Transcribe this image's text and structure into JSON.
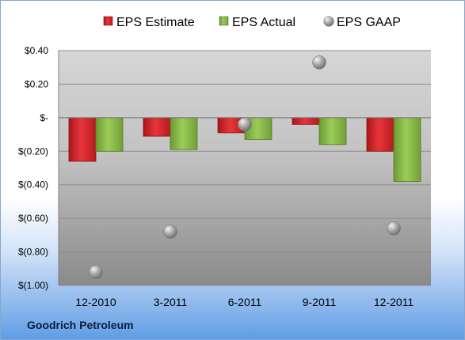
{
  "chart_data": {
    "type": "bar",
    "categories": [
      "12-2010",
      "3-2011",
      "6-2011",
      "9-2011",
      "12-2011"
    ],
    "series": [
      {
        "name": "EPS Estimate",
        "values": [
          -0.26,
          -0.11,
          -0.09,
          -0.04,
          -0.2
        ],
        "color": "#e0252a"
      },
      {
        "name": "EPS Actual",
        "values": [
          -0.2,
          -0.19,
          -0.13,
          -0.16,
          -0.38
        ],
        "color": "#8fc04a"
      },
      {
        "name": "EPS GAAP",
        "values": [
          -0.92,
          -0.68,
          -0.04,
          0.33,
          -0.66
        ],
        "color": "#a6a6a6",
        "style": "marker"
      }
    ],
    "ylim": [
      -1.0,
      0.4
    ],
    "yticks": [
      0.4,
      0.2,
      0.0,
      -0.2,
      -0.4,
      -0.6,
      -0.8,
      -1.0
    ],
    "ytick_labels": [
      "$0.40",
      "$0.20",
      "$-",
      "$(0.20)",
      "$(0.40)",
      "$(0.60)",
      "$(0.80)",
      "$(1.00)"
    ],
    "legend_position": "top",
    "grid": true
  },
  "footer": {
    "company": "Goodrich Petroleum"
  }
}
